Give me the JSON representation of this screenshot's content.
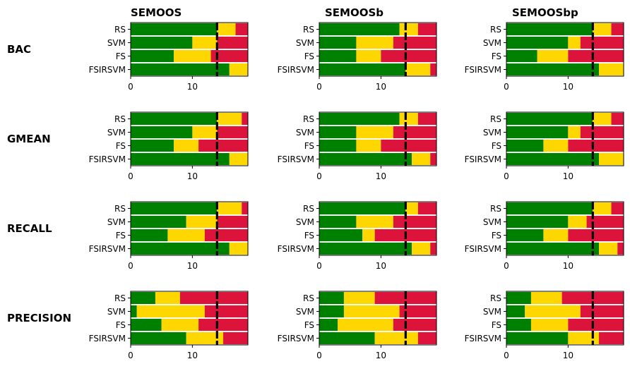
{
  "colors": {
    "win": "#008000",
    "tie": "#ffd700",
    "loss": "#dc143c",
    "critical": "#000000"
  },
  "chart_data": {
    "type": "stacked-barh-grid",
    "columns": [
      "SEMOOS",
      "SEMOOSb",
      "SEMOOSbp"
    ],
    "rows": [
      "BAC",
      "GMEAN",
      "RECALL",
      "PRECISION"
    ],
    "categories": [
      "RS",
      "SVM",
      "FS",
      "FSIRSVM"
    ],
    "series_order": [
      "win",
      "tie",
      "loss"
    ],
    "xlim": [
      0,
      19
    ],
    "xticks": [
      0,
      10
    ],
    "critical_value": 14,
    "panels": [
      {
        "row": "BAC",
        "column": "SEMOOS",
        "win": [
          14,
          10,
          7,
          16
        ],
        "tie": [
          3,
          4,
          6,
          3
        ],
        "loss": [
          2,
          5,
          6,
          0
        ]
      },
      {
        "row": "BAC",
        "column": "SEMOOSb",
        "win": [
          13,
          6,
          6,
          14
        ],
        "tie": [
          3,
          6,
          4,
          4
        ],
        "loss": [
          3,
          7,
          9,
          1
        ]
      },
      {
        "row": "BAC",
        "column": "SEMOOSbp",
        "win": [
          14,
          10,
          5,
          15
        ],
        "tie": [
          3,
          2,
          5,
          4
        ],
        "loss": [
          2,
          7,
          9,
          0
        ]
      },
      {
        "row": "GMEAN",
        "column": "SEMOOS",
        "win": [
          14,
          10,
          7,
          16
        ],
        "tie": [
          4,
          4,
          4,
          3
        ],
        "loss": [
          1,
          5,
          8,
          0
        ]
      },
      {
        "row": "GMEAN",
        "column": "SEMOOSb",
        "win": [
          13,
          6,
          6,
          15
        ],
        "tie": [
          3,
          6,
          4,
          3
        ],
        "loss": [
          3,
          7,
          9,
          1
        ]
      },
      {
        "row": "GMEAN",
        "column": "SEMOOSbp",
        "win": [
          14,
          10,
          6,
          15
        ],
        "tie": [
          3,
          2,
          4,
          4
        ],
        "loss": [
          2,
          7,
          9,
          0
        ]
      },
      {
        "row": "RECALL",
        "column": "SEMOOS",
        "win": [
          14,
          9,
          6,
          16
        ],
        "tie": [
          4,
          5,
          6,
          3
        ],
        "loss": [
          1,
          5,
          7,
          0
        ]
      },
      {
        "row": "RECALL",
        "column": "SEMOOSb",
        "win": [
          14,
          6,
          7,
          15
        ],
        "tie": [
          2,
          6,
          2,
          3
        ],
        "loss": [
          3,
          7,
          10,
          1
        ]
      },
      {
        "row": "RECALL",
        "column": "SEMOOSbp",
        "win": [
          14,
          10,
          6,
          15
        ],
        "tie": [
          3,
          3,
          4,
          3
        ],
        "loss": [
          2,
          6,
          9,
          1
        ]
      },
      {
        "row": "PRECISION",
        "column": "SEMOOS",
        "win": [
          4,
          1,
          5,
          9
        ],
        "tie": [
          4,
          11,
          6,
          6
        ],
        "loss": [
          11,
          7,
          8,
          4
        ]
      },
      {
        "row": "PRECISION",
        "column": "SEMOOSb",
        "win": [
          4,
          4,
          3,
          9
        ],
        "tie": [
          5,
          9,
          9,
          7
        ],
        "loss": [
          10,
          6,
          7,
          3
        ]
      },
      {
        "row": "PRECISION",
        "column": "SEMOOSbp",
        "win": [
          4,
          3,
          4,
          10
        ],
        "tie": [
          5,
          9,
          6,
          5
        ],
        "loss": [
          10,
          7,
          9,
          4
        ]
      }
    ]
  }
}
